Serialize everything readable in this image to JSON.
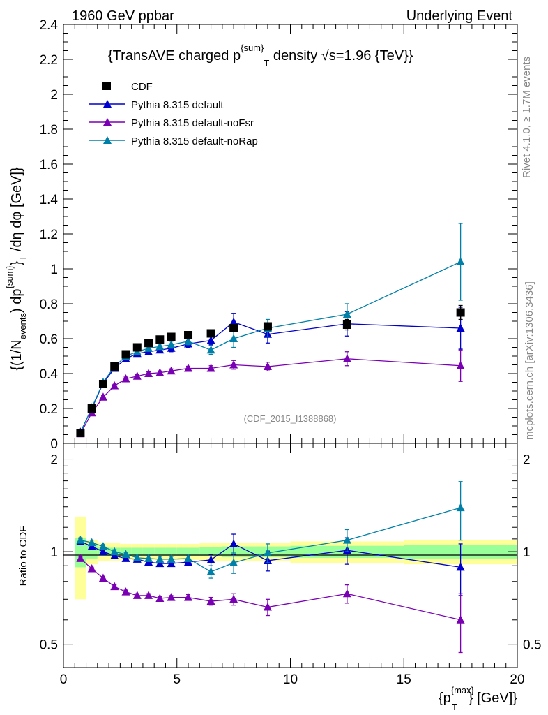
{
  "header": {
    "left": "1960 GeV ppbar",
    "right": "Underlying Event"
  },
  "side_text": {
    "rivet": "Rivet 4.1.0, ≥ 1.7M events",
    "mcplots": "mcplots.cern.ch [arXiv:1306.3436]"
  },
  "analysis_id": "(CDF_2015_I1388868)",
  "colors": {
    "cdf": "#000000",
    "default": "#0000cc",
    "nofsr": "#7a00b3",
    "norap": "#0080a8",
    "band_yellow": "#ffff99",
    "band_green": "#99ff99"
  },
  "chart_data": [
    {
      "type": "line",
      "title": "{TransAVE charged p^{sum}_T density √s=1.96 {TeV}}",
      "title_parts": {
        "a": "{TransAVE charged p",
        "sup": "{sum}",
        "sub": "T",
        "b": " density √s=1.96 {TeV}}"
      },
      "ylabel": "{(1/N_{events}) dp^{sum}_T /dη dφ [GeV]}",
      "ylabel_parts": {
        "a": "{(1/N",
        "sub1": "events",
        "b": ") dp",
        "sup": "{sum}",
        "c": "}",
        "sub2": "T",
        "d": " /dη  dφ  [GeV]}"
      },
      "xlim": [
        0,
        20
      ],
      "ylim": [
        0,
        2.4
      ],
      "yticks": [
        0,
        0.2,
        0.4,
        0.6,
        0.8,
        1,
        1.2,
        1.4,
        1.6,
        1.8,
        2,
        2.2,
        2.4
      ],
      "ytick_labels": [
        "0",
        "0.2",
        "0.4",
        "0.6",
        "0.8",
        "1",
        "1.2",
        "1.4",
        "1.6",
        "1.8",
        "2",
        "2.2",
        "2.4"
      ],
      "x": [
        0.75,
        1.25,
        1.75,
        2.25,
        2.75,
        3.25,
        3.75,
        4.25,
        4.75,
        5.5,
        6.5,
        7.5,
        9,
        12.5,
        17.5
      ],
      "series": [
        {
          "name": "CDF",
          "marker": "square",
          "color": "#000000",
          "values": [
            0.06,
            0.2,
            0.34,
            0.44,
            0.51,
            0.55,
            0.575,
            0.595,
            0.61,
            0.62,
            0.63,
            0.66,
            0.67,
            0.68,
            0.75
          ],
          "errors": [
            0.01,
            0.01,
            0.01,
            0.01,
            0.01,
            0.01,
            0.01,
            0.01,
            0.01,
            0.01,
            0.015,
            0.02,
            0.02,
            0.03,
            0.04
          ]
        },
        {
          "name": "Pythia 8.315 default",
          "marker": "triangle",
          "color": "#0000cc",
          "values": [
            0.065,
            0.2,
            0.345,
            0.43,
            0.485,
            0.515,
            0.525,
            0.535,
            0.545,
            0.57,
            0.59,
            0.695,
            0.625,
            0.685,
            0.66
          ],
          "errors": [
            0.005,
            0.008,
            0.01,
            0.01,
            0.012,
            0.015,
            0.015,
            0.015,
            0.02,
            0.02,
            0.025,
            0.05,
            0.05,
            0.07,
            0.12
          ]
        },
        {
          "name": "Pythia 8.315 default-noFsr",
          "marker": "triangle",
          "color": "#7a00b3",
          "values": [
            0.055,
            0.175,
            0.265,
            0.33,
            0.37,
            0.385,
            0.4,
            0.405,
            0.415,
            0.43,
            0.43,
            0.45,
            0.44,
            0.485,
            0.445
          ],
          "errors": [
            0.004,
            0.006,
            0.008,
            0.008,
            0.01,
            0.01,
            0.01,
            0.01,
            0.012,
            0.012,
            0.015,
            0.025,
            0.025,
            0.04,
            0.09
          ]
        },
        {
          "name": "Pythia 8.315 default-noRap",
          "marker": "triangle",
          "color": "#0080a8",
          "values": [
            0.06,
            0.205,
            0.35,
            0.44,
            0.5,
            0.525,
            0.545,
            0.555,
            0.565,
            0.585,
            0.535,
            0.6,
            0.66,
            0.74,
            1.04
          ],
          "errors": [
            0.005,
            0.008,
            0.01,
            0.01,
            0.012,
            0.015,
            0.015,
            0.015,
            0.02,
            0.02,
            0.025,
            0.05,
            0.05,
            0.06,
            0.22
          ]
        }
      ],
      "legend_position": "top-left"
    },
    {
      "type": "line",
      "ylabel": "Ratio to CDF",
      "xlabel": "{p_T^{max}} [GeV]}",
      "xlabel_parts": {
        "a": "{p",
        "sup": "{max}",
        "sub": "T",
        "b": "} [GeV]}"
      },
      "xlim": [
        0,
        20
      ],
      "ylim": [
        0.42,
        2.25
      ],
      "yscale": "log",
      "yticks": [
        0.5,
        1,
        2
      ],
      "ytick_labels": [
        "0.5",
        "1",
        "2"
      ],
      "xticks": [
        0,
        5,
        10,
        15,
        20
      ],
      "xtick_labels": [
        "0",
        "5",
        "10",
        "15",
        "20"
      ],
      "bands": {
        "edges": [
          0.5,
          1.0,
          1.5,
          2.0,
          2.5,
          3.0,
          3.5,
          4.0,
          4.5,
          5.0,
          6.0,
          7.0,
          8.0,
          10.0,
          15.0,
          20.0
        ],
        "yellow": [
          0.3,
          0.09,
          0.07,
          0.065,
          0.06,
          0.06,
          0.06,
          0.06,
          0.06,
          0.06,
          0.065,
          0.07,
          0.07,
          0.08,
          0.09
        ],
        "green": [
          0.11,
          0.05,
          0.035,
          0.03,
          0.03,
          0.03,
          0.03,
          0.03,
          0.03,
          0.03,
          0.035,
          0.04,
          0.04,
          0.045,
          0.05
        ]
      },
      "x": [
        0.75,
        1.25,
        1.75,
        2.25,
        2.75,
        3.25,
        3.75,
        4.25,
        4.75,
        5.5,
        6.5,
        7.5,
        9,
        12.5,
        17.5
      ],
      "series": [
        {
          "name": "Pythia 8.315 default",
          "color": "#0000cc",
          "values": [
            1.08,
            1.04,
            1.0,
            0.97,
            0.95,
            0.945,
            0.925,
            0.915,
            0.915,
            0.925,
            0.94,
            1.06,
            0.935,
            1.01,
            0.89
          ],
          "errors": [
            0.02,
            0.02,
            0.015,
            0.015,
            0.015,
            0.015,
            0.02,
            0.02,
            0.02,
            0.02,
            0.04,
            0.08,
            0.07,
            0.1,
            0.17
          ]
        },
        {
          "name": "Pythia 8.315 default-noFsr",
          "color": "#7a00b3",
          "values": [
            0.95,
            0.88,
            0.82,
            0.77,
            0.74,
            0.72,
            0.72,
            0.705,
            0.71,
            0.71,
            0.69,
            0.7,
            0.66,
            0.73,
            0.6
          ],
          "errors": [
            0.01,
            0.01,
            0.01,
            0.01,
            0.01,
            0.01,
            0.01,
            0.01,
            0.01,
            0.015,
            0.02,
            0.03,
            0.04,
            0.05,
            0.13
          ]
        },
        {
          "name": "Pythia 8.315 default-noRap",
          "color": "#0080a8",
          "values": [
            1.09,
            1.07,
            1.04,
            1.0,
            0.98,
            0.955,
            0.95,
            0.945,
            0.945,
            0.95,
            0.86,
            0.92,
            0.99,
            1.09,
            1.39
          ],
          "errors": [
            0.02,
            0.02,
            0.015,
            0.015,
            0.015,
            0.015,
            0.02,
            0.02,
            0.02,
            0.02,
            0.04,
            0.07,
            0.07,
            0.09,
            0.3
          ]
        }
      ]
    }
  ]
}
